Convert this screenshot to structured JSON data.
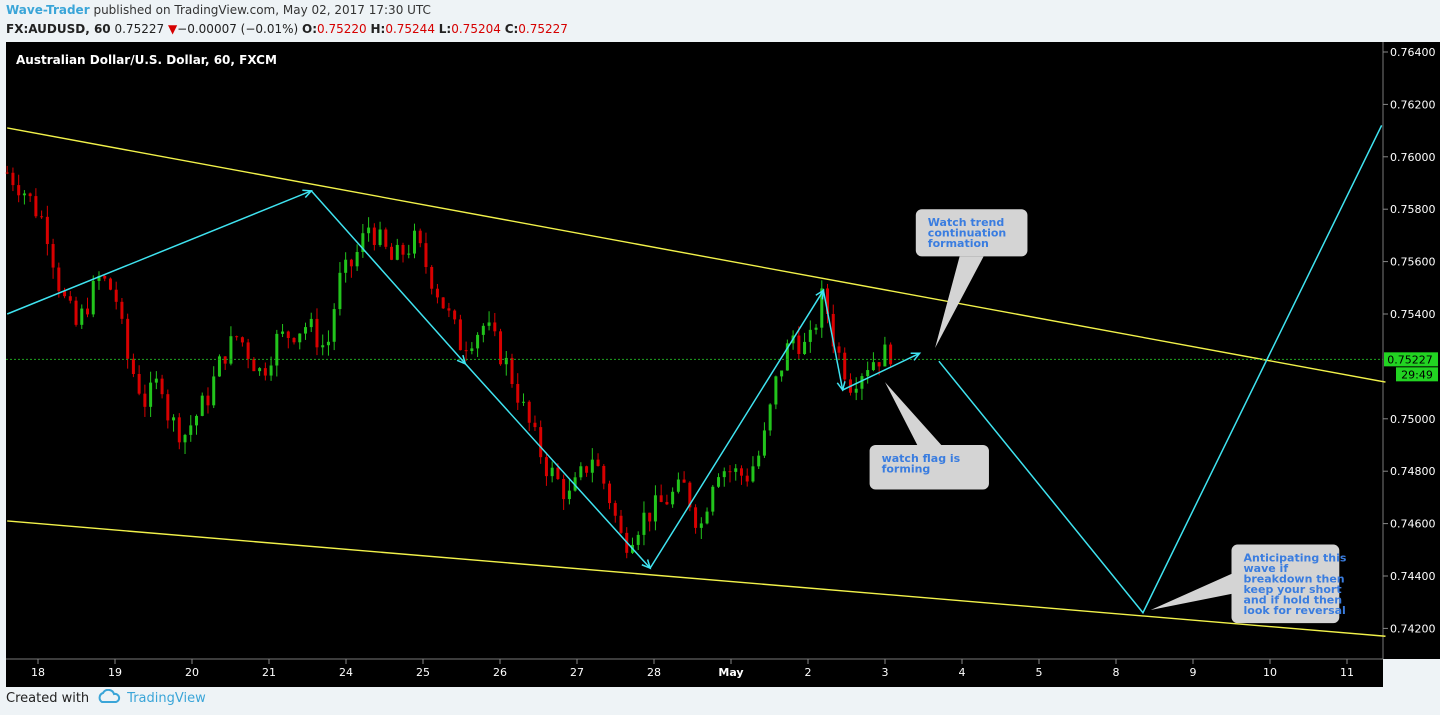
{
  "header": {
    "author": "Wave-Trader",
    "published": "published on TradingView.com, May 02, 2017 17:30 UTC",
    "symbol": "FX:AUDUSD, 60",
    "last": "0.75227",
    "change_arrow": "▼",
    "change": "−0.00007 (−0.01%)",
    "o_label": "O:",
    "o": "0.75220",
    "h_label": "H:",
    "h": "0.75244",
    "l_label": "L:",
    "l": "0.75204",
    "c_label": "C:",
    "c": "0.75227"
  },
  "footer": {
    "created_with": "Created with",
    "brand": "TradingView",
    "logo_icon": "tradingview-cloud-icon"
  },
  "colors": {
    "background": "#000000",
    "up": "#22c41c",
    "down": "#d80000",
    "channel": "#f2f24a",
    "wave": "#3fe3f0",
    "price_line": "#1fa31f",
    "price_tag": "#22d422",
    "callout": "#d4d4d4",
    "callout_text": "#3a7de0"
  },
  "chart_data": {
    "type": "candlestick",
    "title": "Australian Dollar/U.S. Dollar, 60, FXCM",
    "ylim": [
      0.7412,
      0.7645
    ],
    "y_ticks": [
      "0.76400",
      "0.76200",
      "0.76000",
      "0.75800",
      "0.75600",
      "0.75400",
      "0.75000",
      "0.74800",
      "0.74600",
      "0.74400",
      "0.74200"
    ],
    "x_ticks": [
      "18",
      "19",
      "20",
      "21",
      "24",
      "25",
      "26",
      "27",
      "28",
      "May",
      "2",
      "3",
      "4",
      "5",
      "8",
      "9",
      "10",
      "11"
    ],
    "x_positions": [
      0,
      1,
      2,
      3,
      4,
      5,
      6,
      7,
      8,
      9,
      10,
      11,
      12,
      13,
      14,
      15,
      16,
      17
    ],
    "last_price": "0.75227",
    "countdown": "29:49",
    "path_anchors": [
      {
        "x": -0.4,
        "y": 0.7594
      },
      {
        "x": -0.2,
        "y": 0.7588
      },
      {
        "x": 0.1,
        "y": 0.7574
      },
      {
        "x": 0.3,
        "y": 0.7548
      },
      {
        "x": 0.5,
        "y": 0.7535
      },
      {
        "x": 0.8,
        "y": 0.7554
      },
      {
        "x": 1.0,
        "y": 0.7548
      },
      {
        "x": 1.15,
        "y": 0.7524
      },
      {
        "x": 1.4,
        "y": 0.7506
      },
      {
        "x": 1.6,
        "y": 0.7516
      },
      {
        "x": 1.7,
        "y": 0.75
      },
      {
        "x": 1.9,
        "y": 0.7494
      },
      {
        "x": 2.2,
        "y": 0.7508
      },
      {
        "x": 2.4,
        "y": 0.7524
      },
      {
        "x": 2.6,
        "y": 0.7532
      },
      {
        "x": 2.9,
        "y": 0.7517
      },
      {
        "x": 3.1,
        "y": 0.753
      },
      {
        "x": 3.5,
        "y": 0.7536
      },
      {
        "x": 3.75,
        "y": 0.7526
      },
      {
        "x": 3.9,
        "y": 0.7552
      },
      {
        "x": 4.1,
        "y": 0.756
      },
      {
        "x": 4.3,
        "y": 0.7574
      },
      {
        "x": 4.6,
        "y": 0.756
      },
      {
        "x": 4.9,
        "y": 0.7568
      },
      {
        "x": 5.2,
        "y": 0.7548
      },
      {
        "x": 5.5,
        "y": 0.7528
      },
      {
        "x": 5.8,
        "y": 0.7536
      },
      {
        "x": 6.1,
        "y": 0.752
      },
      {
        "x": 6.4,
        "y": 0.7496
      },
      {
        "x": 6.6,
        "y": 0.7482
      },
      {
        "x": 6.9,
        "y": 0.747
      },
      {
        "x": 7.2,
        "y": 0.7486
      },
      {
        "x": 7.4,
        "y": 0.7472
      },
      {
        "x": 7.6,
        "y": 0.7452
      },
      {
        "x": 7.85,
        "y": 0.7462
      },
      {
        "x": 8.2,
        "y": 0.747
      },
      {
        "x": 8.4,
        "y": 0.7474
      },
      {
        "x": 8.6,
        "y": 0.7458
      },
      {
        "x": 8.8,
        "y": 0.7482
      },
      {
        "x": 9.2,
        "y": 0.7478
      },
      {
        "x": 9.4,
        "y": 0.7488
      },
      {
        "x": 9.6,
        "y": 0.7516
      },
      {
        "x": 9.8,
        "y": 0.7532
      },
      {
        "x": 10.0,
        "y": 0.7526
      },
      {
        "x": 10.2,
        "y": 0.7548
      },
      {
        "x": 10.35,
        "y": 0.7528
      },
      {
        "x": 10.55,
        "y": 0.7514
      },
      {
        "x": 10.8,
        "y": 0.7522
      },
      {
        "x": 11.1,
        "y": 0.7526
      }
    ],
    "channel_lines": [
      {
        "x1": -0.4,
        "y1": 0.7611,
        "x2": 17.5,
        "y2": 0.7514
      },
      {
        "x1": -0.4,
        "y1": 0.7461,
        "x2": 17.5,
        "y2": 0.7417
      }
    ],
    "wave_path": [
      {
        "x": -0.4,
        "y": 0.754
      },
      {
        "x": 3.55,
        "y": 0.7587
      },
      {
        "x": 5.55,
        "y": 0.7521
      },
      {
        "x": 7.95,
        "y": 0.7443
      },
      {
        "x": 10.2,
        "y": 0.7549
      },
      {
        "x": 10.45,
        "y": 0.7511
      },
      {
        "x": 11.45,
        "y": 0.7525
      }
    ],
    "forecast_path": [
      {
        "x": 11.7,
        "y": 0.7522
      },
      {
        "x": 14.35,
        "y": 0.7426
      },
      {
        "x": 17.45,
        "y": 0.7612
      }
    ],
    "callouts": [
      {
        "text": [
          "Watch trend",
          "continuation",
          "formation"
        ],
        "box": {
          "x1": 11.4,
          "x2": 12.85,
          "y1": 0.758,
          "y2": 0.7562
        },
        "pointer": {
          "x": 11.65,
          "y": 0.7527
        }
      },
      {
        "text": [
          "watch flag is",
          "forming"
        ],
        "box": {
          "x1": 10.8,
          "x2": 12.35,
          "y1": 0.749,
          "y2": 0.7473
        },
        "pointer": {
          "x": 11.0,
          "y": 0.7514
        }
      },
      {
        "text": [
          "Anticipating this",
          "wave if",
          "breakdown then",
          "keep your short",
          "and if hold then",
          "look for reversal"
        ],
        "box": {
          "x1": 15.5,
          "x2": 16.9,
          "y1": 0.7452,
          "y2": 0.7422
        },
        "pointer": {
          "x": 14.45,
          "y": 0.7427
        }
      }
    ]
  }
}
